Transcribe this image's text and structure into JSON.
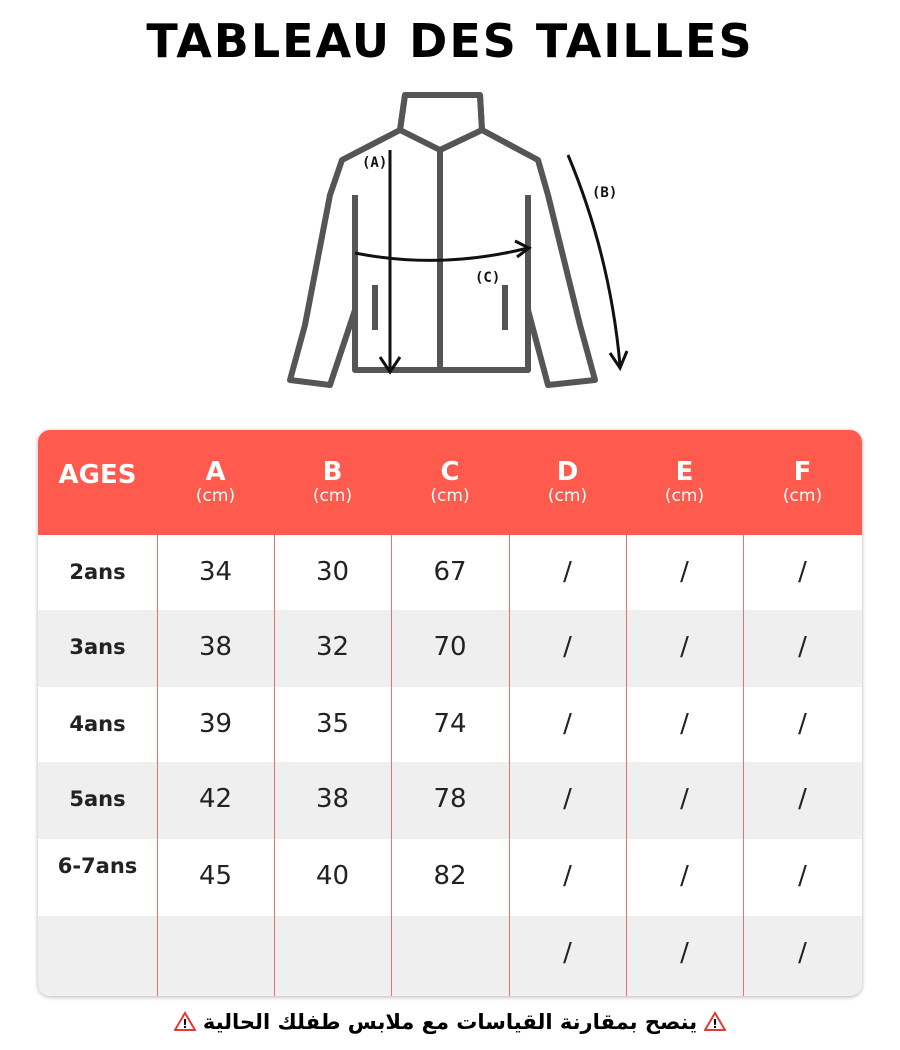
{
  "header": {
    "title": "TABLEAU DES TAILLES"
  },
  "diagram": {
    "labels": [
      "(A)",
      "(B)",
      "(C)"
    ]
  },
  "table": {
    "columns": [
      {
        "letter": "AGES"
      },
      {
        "letter": "A",
        "unit": "(cm)"
      },
      {
        "letter": "B",
        "unit": "(cm)"
      },
      {
        "letter": "C",
        "unit": "(cm)"
      },
      {
        "letter": "D",
        "unit": "(cm)"
      },
      {
        "letter": "E",
        "unit": "(cm)"
      },
      {
        "letter": "F",
        "unit": "(cm)"
      }
    ],
    "rows": [
      [
        "2ans",
        34,
        30,
        67,
        "/",
        "/",
        "/"
      ],
      [
        "3ans",
        38,
        32,
        70,
        "/",
        "/",
        "/"
      ],
      [
        "4ans",
        39,
        35,
        74,
        "/",
        "/",
        "/"
      ],
      [
        "5ans",
        42,
        38,
        78,
        "/",
        "/",
        "/"
      ],
      [
        "6-7ans",
        45,
        40,
        82,
        "/",
        "/",
        "/"
      ],
      [
        null,
        null,
        null,
        null,
        "/",
        "/",
        "/"
      ]
    ]
  },
  "footer": {
    "note": "ينصح بمقارنة القياسات مع ملابس طفلك الحالية"
  }
}
